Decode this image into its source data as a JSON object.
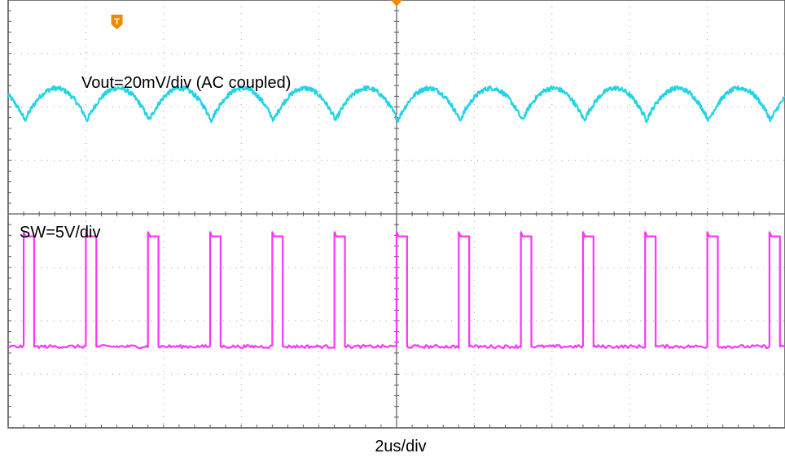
{
  "chart_data": {
    "type": "line",
    "title": "",
    "xlabel": "2us/div",
    "grid": true,
    "time_per_div_us": 2,
    "divisions": {
      "x": 10,
      "y": 8
    },
    "annotations": [
      {
        "text": "Vout=20mV/div (AC coupled)",
        "target": "Vout"
      },
      {
        "text": "SW=5V/div",
        "target": "SW"
      }
    ],
    "series": [
      {
        "name": "Vout",
        "color": "#22d3e6",
        "scale": "20mV/div",
        "coupling": "AC",
        "waveform": "ripple",
        "period_us": 1.6,
        "ripple_divs": 0.6,
        "center_div": 2.05,
        "x": [
          0.0,
          1.6,
          3.2,
          4.8,
          6.4,
          8.0,
          9.6,
          11.2,
          12.8,
          14.4,
          16.0,
          17.6,
          19.2
        ],
        "y": [
          0.0,
          0.0,
          0.0,
          0.0,
          0.0,
          0.0,
          0.0,
          0.0,
          0.0,
          0.0,
          0.0,
          0.0,
          0.0
        ]
      },
      {
        "name": "SW",
        "color": "#ff33ff",
        "scale": "5V/div",
        "waveform": "pulse",
        "period_us": 1.6,
        "pulse_width_us": 0.27,
        "low_div": -2.48,
        "high_div": -0.42,
        "rising_edges_us": [
          0.4,
          2.0,
          3.6,
          5.2,
          6.8,
          8.4,
          10.0,
          11.6,
          13.2,
          14.8,
          16.4,
          18.0,
          19.6
        ]
      }
    ],
    "markers": [
      {
        "text": "T",
        "kind": "trigger",
        "color": "#f08a00"
      }
    ]
  }
}
